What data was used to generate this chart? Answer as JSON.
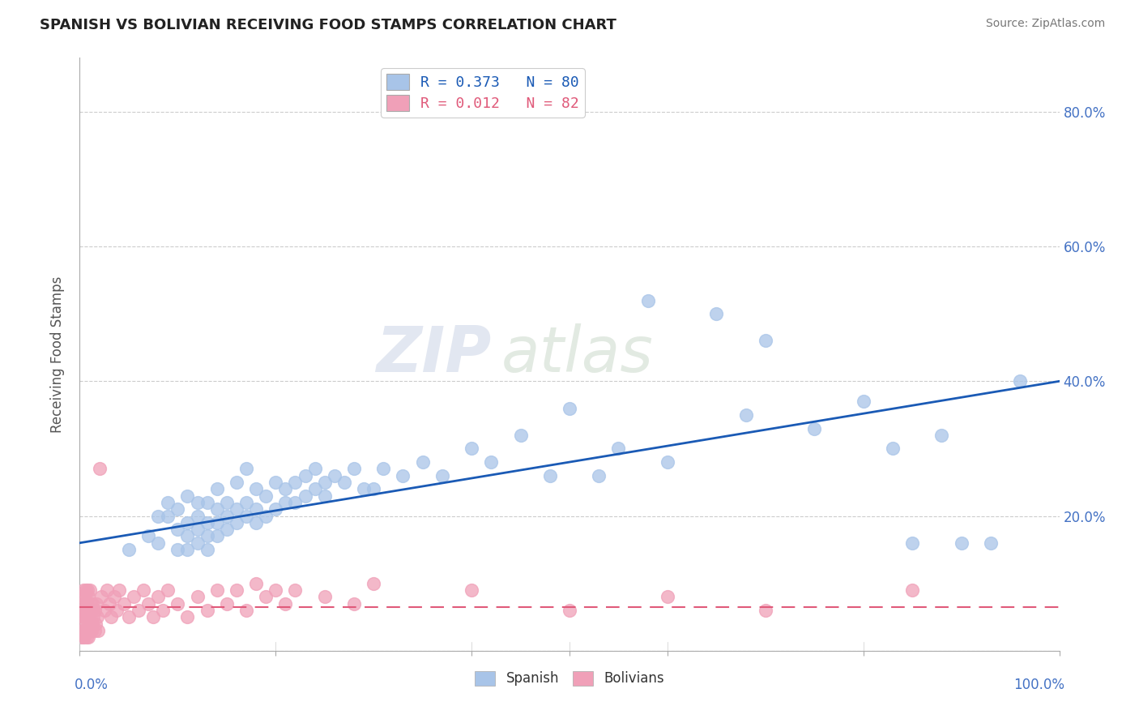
{
  "title": "SPANISH VS BOLIVIAN RECEIVING FOOD STAMPS CORRELATION CHART",
  "source": "Source: ZipAtlas.com",
  "ylabel": "Receiving Food Stamps",
  "xlim": [
    0,
    1.0
  ],
  "ylim": [
    0,
    0.88
  ],
  "spanish_R": 0.373,
  "spanish_N": 80,
  "bolivian_R": 0.012,
  "bolivian_N": 82,
  "spanish_color": "#a8c4e8",
  "bolivian_color": "#f0a0b8",
  "spanish_line_color": "#1a5ab5",
  "bolivian_line_color": "#e05a7a",
  "watermark_zip": "ZIP",
  "watermark_atlas": "atlas",
  "spanish_x": [
    0.05,
    0.07,
    0.08,
    0.08,
    0.09,
    0.09,
    0.1,
    0.1,
    0.1,
    0.11,
    0.11,
    0.11,
    0.11,
    0.12,
    0.12,
    0.12,
    0.12,
    0.13,
    0.13,
    0.13,
    0.13,
    0.14,
    0.14,
    0.14,
    0.14,
    0.15,
    0.15,
    0.15,
    0.16,
    0.16,
    0.16,
    0.17,
    0.17,
    0.17,
    0.18,
    0.18,
    0.18,
    0.19,
    0.19,
    0.2,
    0.2,
    0.21,
    0.21,
    0.22,
    0.22,
    0.23,
    0.23,
    0.24,
    0.24,
    0.25,
    0.25,
    0.26,
    0.27,
    0.28,
    0.29,
    0.3,
    0.31,
    0.33,
    0.35,
    0.37,
    0.4,
    0.42,
    0.45,
    0.48,
    0.5,
    0.53,
    0.55,
    0.58,
    0.6,
    0.65,
    0.68,
    0.7,
    0.75,
    0.8,
    0.83,
    0.85,
    0.88,
    0.9,
    0.93,
    0.96
  ],
  "spanish_y": [
    0.15,
    0.17,
    0.2,
    0.16,
    0.2,
    0.22,
    0.15,
    0.18,
    0.21,
    0.15,
    0.17,
    0.19,
    0.23,
    0.16,
    0.18,
    0.2,
    0.22,
    0.15,
    0.17,
    0.19,
    0.22,
    0.17,
    0.19,
    0.21,
    0.24,
    0.18,
    0.2,
    0.22,
    0.19,
    0.21,
    0.25,
    0.2,
    0.22,
    0.27,
    0.19,
    0.21,
    0.24,
    0.2,
    0.23,
    0.21,
    0.25,
    0.22,
    0.24,
    0.22,
    0.25,
    0.23,
    0.26,
    0.24,
    0.27,
    0.23,
    0.25,
    0.26,
    0.25,
    0.27,
    0.24,
    0.24,
    0.27,
    0.26,
    0.28,
    0.26,
    0.3,
    0.28,
    0.32,
    0.26,
    0.36,
    0.26,
    0.3,
    0.52,
    0.28,
    0.5,
    0.35,
    0.46,
    0.33,
    0.37,
    0.3,
    0.16,
    0.32,
    0.16,
    0.16,
    0.4
  ],
  "bolivian_x": [
    0.001,
    0.001,
    0.002,
    0.002,
    0.002,
    0.003,
    0.003,
    0.003,
    0.004,
    0.004,
    0.004,
    0.005,
    0.005,
    0.005,
    0.006,
    0.006,
    0.006,
    0.007,
    0.007,
    0.007,
    0.008,
    0.008,
    0.008,
    0.009,
    0.009,
    0.009,
    0.01,
    0.01,
    0.01,
    0.011,
    0.011,
    0.012,
    0.012,
    0.013,
    0.013,
    0.014,
    0.015,
    0.015,
    0.016,
    0.017,
    0.018,
    0.019,
    0.02,
    0.022,
    0.025,
    0.028,
    0.03,
    0.032,
    0.035,
    0.038,
    0.04,
    0.045,
    0.05,
    0.055,
    0.06,
    0.065,
    0.07,
    0.075,
    0.08,
    0.085,
    0.09,
    0.1,
    0.11,
    0.12,
    0.13,
    0.14,
    0.15,
    0.16,
    0.17,
    0.18,
    0.19,
    0.2,
    0.21,
    0.22,
    0.25,
    0.28,
    0.3,
    0.4,
    0.5,
    0.6,
    0.7,
    0.85
  ],
  "bolivian_y": [
    0.02,
    0.04,
    0.03,
    0.06,
    0.08,
    0.02,
    0.05,
    0.07,
    0.03,
    0.06,
    0.09,
    0.02,
    0.05,
    0.08,
    0.03,
    0.06,
    0.09,
    0.02,
    0.05,
    0.07,
    0.03,
    0.06,
    0.09,
    0.02,
    0.05,
    0.08,
    0.03,
    0.06,
    0.09,
    0.04,
    0.07,
    0.03,
    0.06,
    0.04,
    0.07,
    0.05,
    0.03,
    0.06,
    0.04,
    0.07,
    0.05,
    0.03,
    0.27,
    0.08,
    0.06,
    0.09,
    0.07,
    0.05,
    0.08,
    0.06,
    0.09,
    0.07,
    0.05,
    0.08,
    0.06,
    0.09,
    0.07,
    0.05,
    0.08,
    0.06,
    0.09,
    0.07,
    0.05,
    0.08,
    0.06,
    0.09,
    0.07,
    0.09,
    0.06,
    0.1,
    0.08,
    0.09,
    0.07,
    0.09,
    0.08,
    0.07,
    0.1,
    0.09,
    0.06,
    0.08,
    0.06,
    0.09
  ]
}
